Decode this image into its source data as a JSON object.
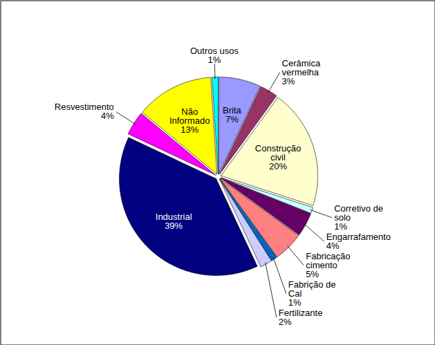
{
  "chart_data": {
    "type": "pie",
    "categories": [
      "Brita",
      "Cerâmica vermelha",
      "Construção civil",
      "Corretivo de solo",
      "Engarrafamento",
      "Fabricação cimento",
      "Fabrição de Cal",
      "Fertilizante",
      "Industrial",
      "Resvestimento",
      "Não Informado",
      "Outros usos"
    ],
    "values": [
      7,
      3,
      20,
      1,
      4,
      5,
      1,
      2,
      39,
      4,
      13,
      1
    ],
    "value_labels": [
      "7%",
      "3%",
      "20%",
      "1%",
      "4%",
      "5%",
      "1%",
      "2%",
      "39%",
      "4%",
      "13%",
      "1%"
    ],
    "colors": [
      "#9999ff",
      "#993366",
      "#ffffcc",
      "#ccffff",
      "#660066",
      "#ff8080",
      "#0066cc",
      "#ccccff",
      "#000080",
      "#ff00ff",
      "#ffff00",
      "#00ffff"
    ],
    "data_labels": true
  }
}
